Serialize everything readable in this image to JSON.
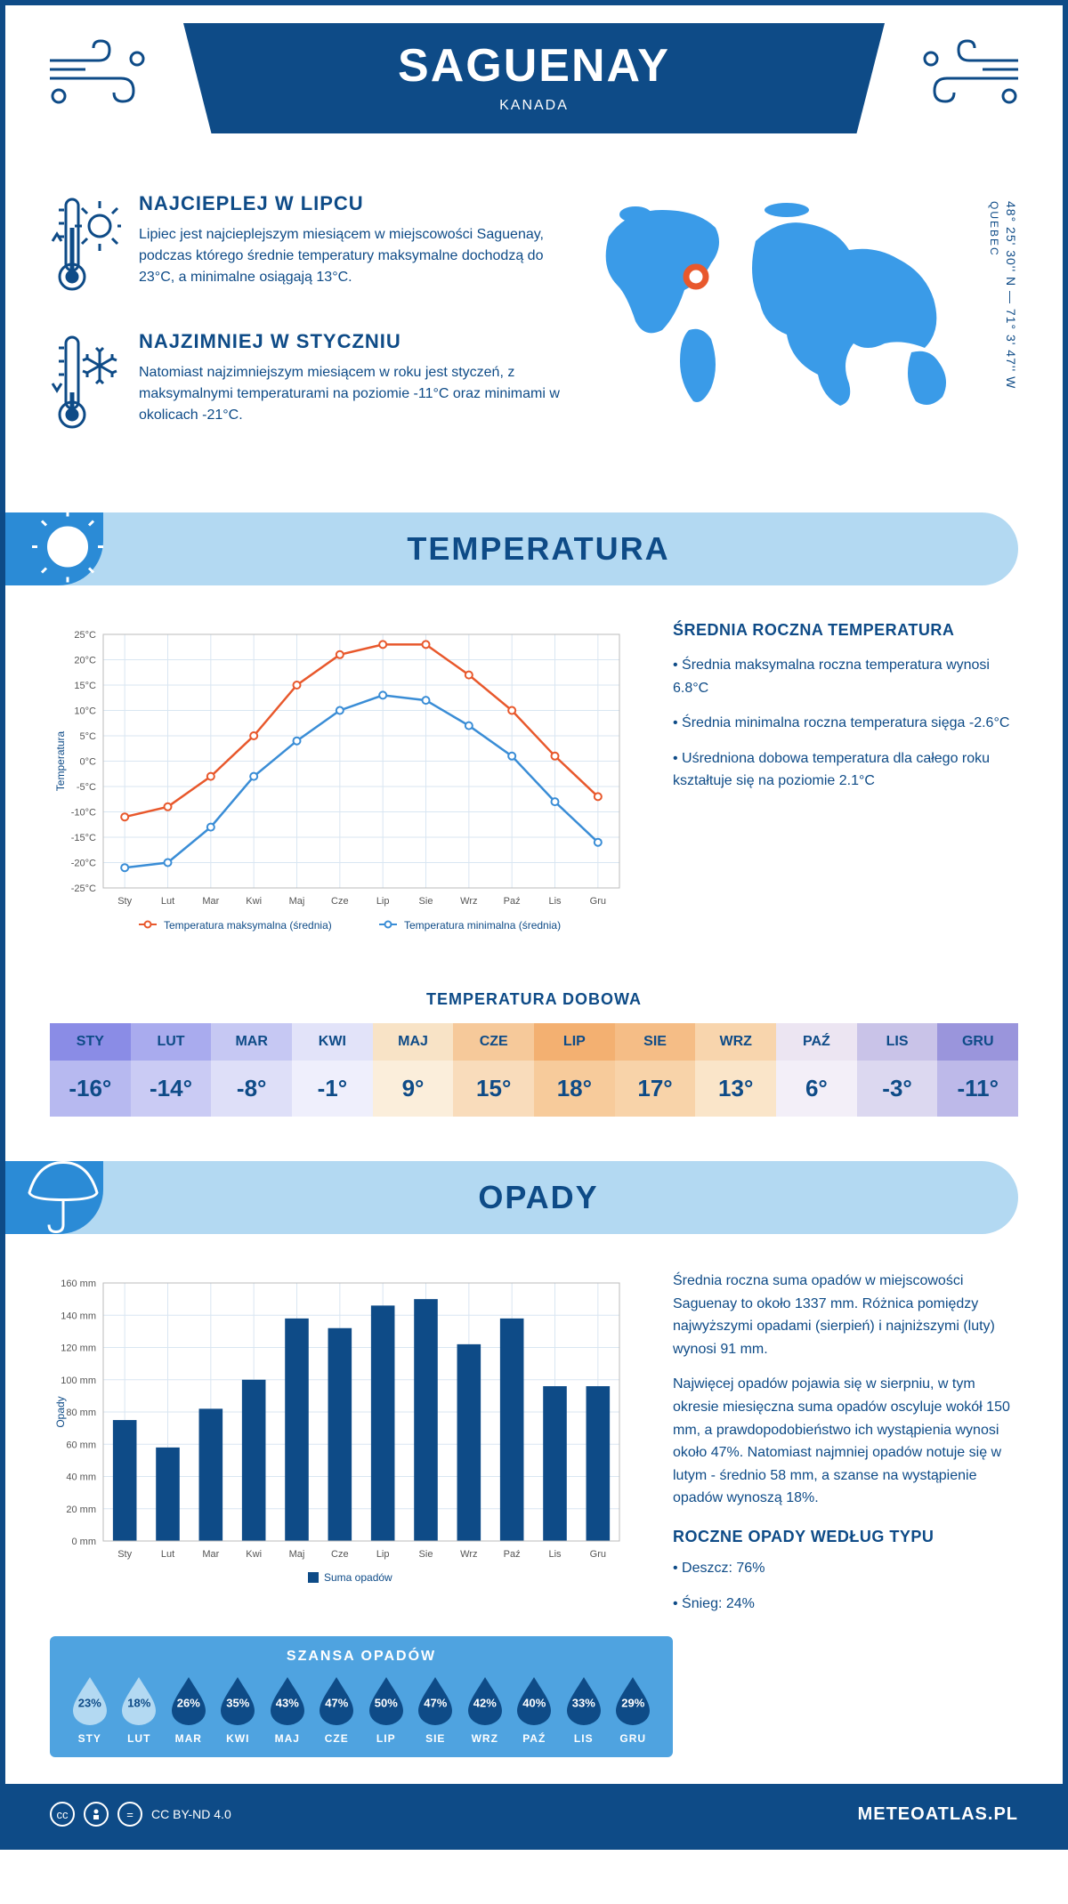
{
  "header": {
    "city": "SAGUENAY",
    "country": "KANADA",
    "coords": "48° 25' 30'' N — 71° 3' 47'' W",
    "region": "QUEBEC"
  },
  "intro": {
    "hot": {
      "title": "NAJCIEPLEJ W LIPCU",
      "text": "Lipiec jest najcieplejszym miesiącem w miejscowości Saguenay, podczas którego średnie temperatury maksymalne dochodzą do 23°C, a minimalne osiągają 13°C."
    },
    "cold": {
      "title": "NAJZIMNIEJ W STYCZNIU",
      "text": "Natomiast najzimniejszym miesiącem w roku jest styczeń, z maksymalnymi temperaturami na poziomie -11°C oraz minimami w okolicach -21°C."
    }
  },
  "sections": {
    "temp_title": "TEMPERATURA",
    "rain_title": "OPADY"
  },
  "temp_chart": {
    "months": [
      "Sty",
      "Lut",
      "Mar",
      "Kwi",
      "Maj",
      "Cze",
      "Lip",
      "Sie",
      "Wrz",
      "Paź",
      "Lis",
      "Gru"
    ],
    "max": [
      -11,
      -9,
      -3,
      5,
      15,
      21,
      23,
      23,
      17,
      10,
      1,
      -7
    ],
    "min": [
      -21,
      -20,
      -13,
      -3,
      4,
      10,
      13,
      12,
      7,
      1,
      -8,
      -16
    ],
    "ylabel": "Temperatura",
    "ylim": [
      -25,
      25
    ],
    "ytick_step": 5,
    "max_color": "#e8582c",
    "min_color": "#3a8dd6",
    "grid_color": "#d9e6f2",
    "bg_color": "#ffffff",
    "legend_max": "Temperatura maksymalna (średnia)",
    "legend_min": "Temperatura minimalna (średnia)"
  },
  "temp_side": {
    "title": "ŚREDNIA ROCZNA TEMPERATURA",
    "b1": "• Średnia maksymalna roczna temperatura wynosi 6.8°C",
    "b2": "• Średnia minimalna roczna temperatura sięga -2.6°C",
    "b3": "• Uśredniona dobowa temperatura dla całego roku kształtuje się na poziomie 2.1°C"
  },
  "daily": {
    "title": "TEMPERATURA DOBOWA",
    "months": [
      "STY",
      "LUT",
      "MAR",
      "KWI",
      "MAJ",
      "CZE",
      "LIP",
      "SIE",
      "WRZ",
      "PAŹ",
      "LIS",
      "GRU"
    ],
    "vals": [
      "-16°",
      "-14°",
      "-8°",
      "-1°",
      "9°",
      "15°",
      "18°",
      "17°",
      "13°",
      "6°",
      "-3°",
      "-11°"
    ],
    "head_colors": [
      "#8a8ce6",
      "#a9abee",
      "#c6c8f3",
      "#e2e3f9",
      "#f8e3c6",
      "#f6c99a",
      "#f3b071",
      "#f5bd86",
      "#f8d5ad",
      "#ece5f2",
      "#c9c3e8",
      "#9a95dc"
    ],
    "val_colors": [
      "#b7b9f0",
      "#cacbf4",
      "#dedff8",
      "#efeffc",
      "#fbeedb",
      "#f9dcbb",
      "#f7cb9b",
      "#f8d3a9",
      "#fae5c9",
      "#f3eff8",
      "#dcd8f0",
      "#bdb9e9"
    ]
  },
  "rain_chart": {
    "months": [
      "Sty",
      "Lut",
      "Mar",
      "Kwi",
      "Maj",
      "Cze",
      "Lip",
      "Sie",
      "Wrz",
      "Paź",
      "Lis",
      "Gru"
    ],
    "values": [
      75,
      58,
      82,
      100,
      138,
      132,
      146,
      150,
      122,
      138,
      96,
      96
    ],
    "ylabel": "Opady",
    "ylim": [
      0,
      160
    ],
    "ytick_step": 20,
    "bar_color": "#0e4b87",
    "grid_color": "#d9e6f2",
    "legend": "Suma opadów"
  },
  "rain_side": {
    "p1": "Średnia roczna suma opadów w miejscowości Saguenay to około 1337 mm. Różnica pomiędzy najwyższymi opadami (sierpień) i najniższymi (luty) wynosi 91 mm.",
    "p2": "Najwięcej opadów pojawia się w sierpniu, w tym okresie miesięczna suma opadów oscyluje wokół 150 mm, a prawdopodobieństwo ich wystąpienia wynosi około 47%. Natomiast najmniej opadów notuje się w lutym - średnio 58 mm, a szanse na wystąpienie opadów wynoszą 18%."
  },
  "chance": {
    "title": "SZANSA OPADÓW",
    "months": [
      "STY",
      "LUT",
      "MAR",
      "KWI",
      "MAJ",
      "CZE",
      "LIP",
      "SIE",
      "WRZ",
      "PAŹ",
      "LIS",
      "GRU"
    ],
    "vals": [
      "23%",
      "18%",
      "26%",
      "35%",
      "43%",
      "47%",
      "50%",
      "47%",
      "42%",
      "40%",
      "33%",
      "29%"
    ],
    "fill": [
      "light",
      "light",
      "dark",
      "dark",
      "dark",
      "dark",
      "dark",
      "dark",
      "dark",
      "dark",
      "dark",
      "dark"
    ]
  },
  "rain_type": {
    "title": "ROCZNE OPADY WEDŁUG TYPU",
    "rain": "• Deszcz: 76%",
    "snow": "• Śnieg: 24%"
  },
  "footer": {
    "license": "CC BY-ND 4.0",
    "site": "METEOATLAS.PL"
  }
}
